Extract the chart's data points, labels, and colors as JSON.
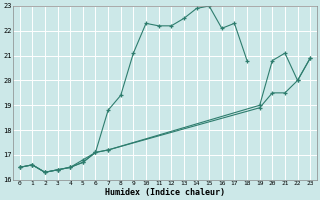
{
  "xlabel": "Humidex (Indice chaleur)",
  "background_color": "#cce8e8",
  "grid_color": "#ffffff",
  "line_color": "#2e7d6e",
  "xlim": [
    -0.5,
    23.5
  ],
  "ylim": [
    16,
    23
  ],
  "xticks": [
    0,
    1,
    2,
    3,
    4,
    5,
    6,
    7,
    8,
    9,
    10,
    11,
    12,
    13,
    14,
    15,
    16,
    17,
    18,
    19,
    20,
    21,
    22,
    23
  ],
  "yticks": [
    16,
    17,
    18,
    19,
    20,
    21,
    22,
    23
  ],
  "line1_x": [
    0,
    1,
    2,
    3,
    4,
    5,
    6,
    7,
    8,
    9,
    10,
    11,
    12,
    13,
    14,
    15,
    16,
    17,
    18
  ],
  "line1_y": [
    16.5,
    16.6,
    16.3,
    16.4,
    16.5,
    16.8,
    17.1,
    18.8,
    19.4,
    21.1,
    22.3,
    22.2,
    22.2,
    22.5,
    22.9,
    23.0,
    22.1,
    22.3,
    20.8
  ],
  "line2_x": [
    0,
    1,
    2,
    3,
    4,
    5,
    6,
    7,
    19,
    20,
    21,
    22,
    23
  ],
  "line2_y": [
    16.5,
    16.6,
    16.3,
    16.4,
    16.5,
    16.7,
    17.1,
    17.2,
    19.0,
    20.8,
    21.1,
    20.0,
    20.9
  ],
  "line3_x": [
    0,
    1,
    2,
    3,
    4,
    5,
    6,
    7,
    19,
    20,
    21,
    22,
    23
  ],
  "line3_y": [
    16.5,
    16.6,
    16.3,
    16.4,
    16.5,
    16.7,
    17.1,
    17.2,
    18.9,
    19.5,
    19.5,
    20.0,
    20.9
  ]
}
